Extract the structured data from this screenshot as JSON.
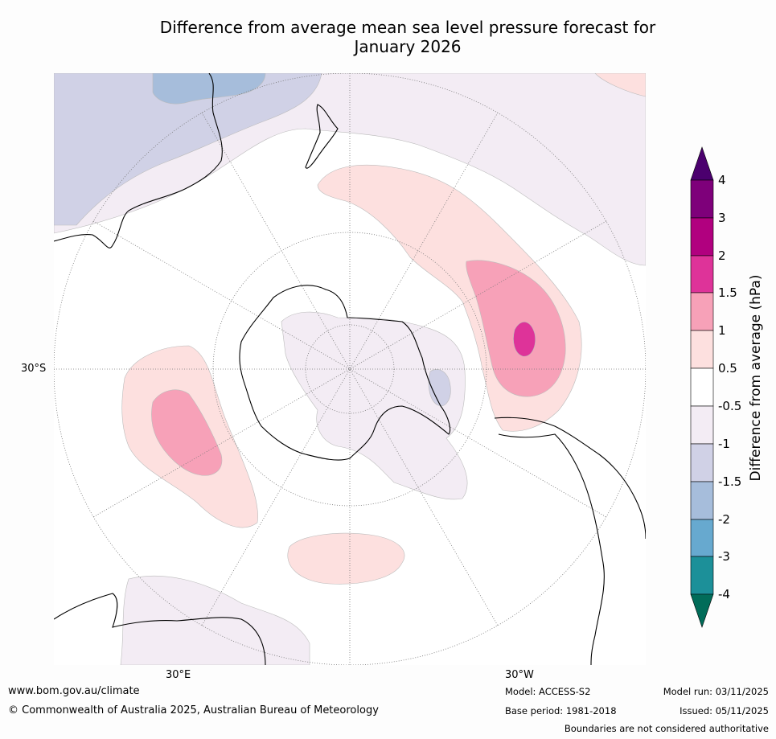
{
  "title_line1": "Difference from average mean sea level pressure forecast for",
  "title_line2": "January 2026",
  "map_labels": {
    "lat_30s": "30°S",
    "lon_30e": "30°E",
    "lon_30w": "30°W"
  },
  "colorbar": {
    "label": "Difference from average (hPa)",
    "ticks": [
      "4",
      "3",
      "2",
      "1.5",
      "1",
      "0.5",
      "-0.5",
      "-1",
      "-1.5",
      "-2",
      "-3",
      "-4"
    ],
    "colors": {
      "gt4": "#4b006e",
      "c3_4": "#7e007a",
      "c2_3": "#b1007f",
      "c15_2": "#de3399",
      "c1_15": "#f7a1b8",
      "c05_1": "#fde0df",
      "neutral": "#ffffff",
      "cm1_m05": "#f3ecf4",
      "cm15_m1": "#d0d1e6",
      "cm2_m15": "#a6bddb",
      "cm3_m2": "#67a9cf",
      "cm4_m3": "#1c9099",
      "lt_m4": "#016c59"
    }
  },
  "footer": {
    "website": "www.bom.gov.au/climate",
    "copyright": "© Commonwealth of Australia 2025, Australian Bureau of Meteorology",
    "model": "Model: ACCESS-S2",
    "base_period": "Base period: 1981-2018",
    "model_run": "Model run: 03/11/2025",
    "issued": "Issued: 05/11/2025",
    "disclaimer": "Boundaries are not considered authoritative"
  }
}
